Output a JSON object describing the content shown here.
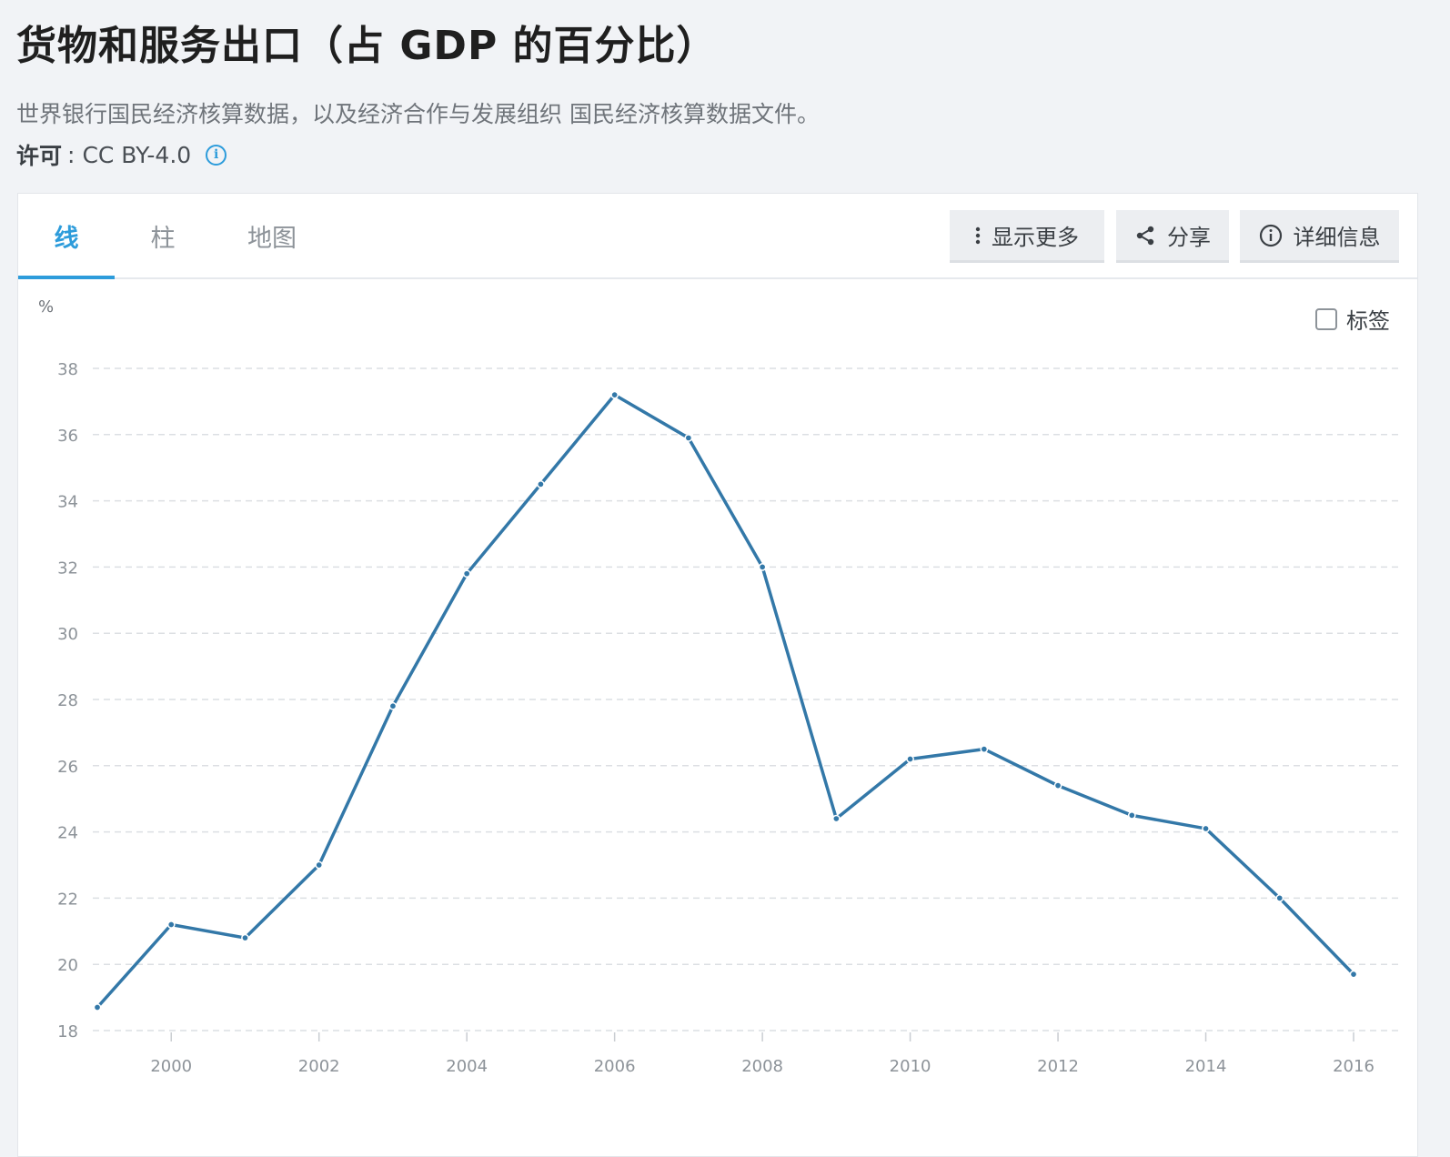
{
  "page": {
    "title": "货物和服务出口（占 GDP 的百分比）",
    "source": "世界银行国民经济核算数据，以及经济合作与发展组织 国民经济核算数据文件。",
    "license_label": "许可",
    "license_sep": ":",
    "license_value": "CC BY-4.0",
    "info_glyph": "i"
  },
  "tabs": [
    {
      "label": "线"
    },
    {
      "label": "柱"
    },
    {
      "label": "地图"
    }
  ],
  "toolbar": {
    "more_label": "显示更多",
    "share_label": "分享",
    "details_label": "详细信息"
  },
  "chart_controls": {
    "unit": "%",
    "labels_toggle": "标签"
  },
  "colors": {
    "accent": "#2d9cdb",
    "line": "#3378a8"
  },
  "chart_data": {
    "type": "line",
    "title": "货物和服务出口（占 GDP 的百分比）",
    "ylabel": "%",
    "xlabel": "",
    "ylim": [
      18,
      38
    ],
    "xlim": [
      1999,
      2016
    ],
    "yticks": [
      18,
      20,
      22,
      24,
      26,
      28,
      30,
      32,
      34,
      36,
      38
    ],
    "xticks": [
      2000,
      2002,
      2004,
      2006,
      2008,
      2010,
      2012,
      2014,
      2016
    ],
    "grid": true,
    "series": [
      {
        "name": "货物和服务出口（占 GDP 的百分比）",
        "x": [
          1999,
          2000,
          2001,
          2002,
          2003,
          2004,
          2005,
          2006,
          2007,
          2008,
          2009,
          2010,
          2011,
          2012,
          2013,
          2014,
          2015,
          2016
        ],
        "values": [
          18.7,
          21.2,
          20.8,
          23.0,
          27.8,
          31.8,
          34.5,
          37.2,
          35.9,
          32.0,
          24.4,
          26.2,
          26.5,
          25.4,
          24.5,
          24.1,
          22.0,
          19.7
        ]
      }
    ]
  }
}
